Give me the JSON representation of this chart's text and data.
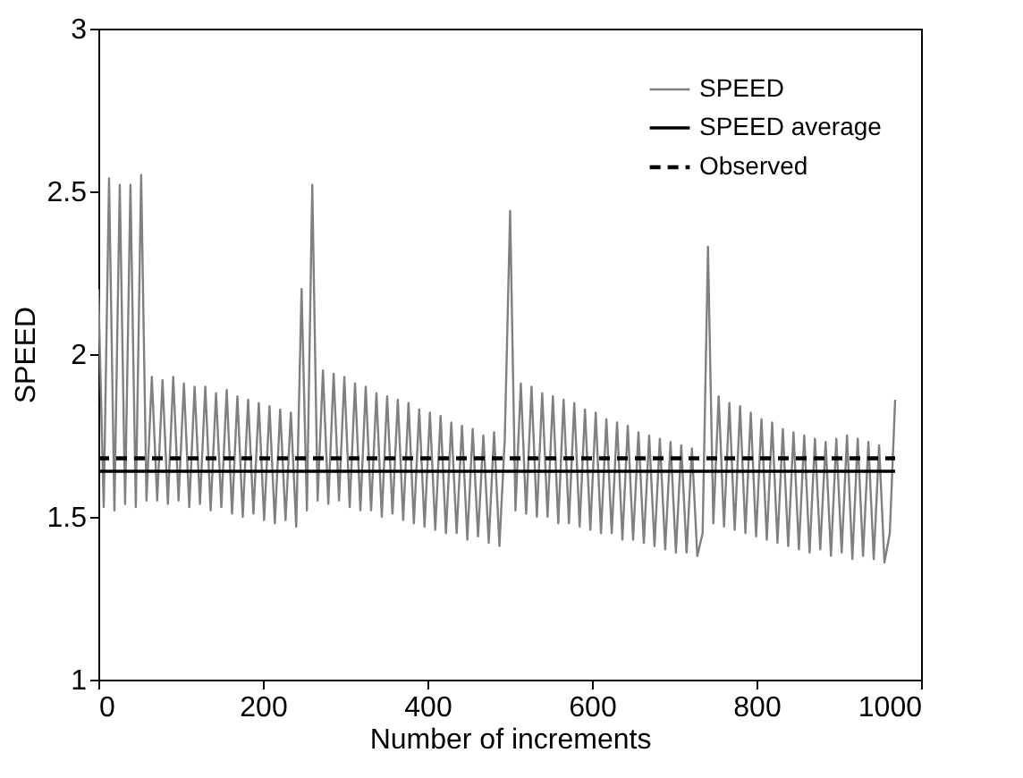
{
  "chart_data": {
    "type": "line",
    "xlabel": "Number of increments",
    "ylabel": "SPEED",
    "xlim": [
      0,
      1000
    ],
    "xticks": [
      0,
      200,
      400,
      600,
      800,
      1000
    ],
    "ylim": [
      1,
      3
    ],
    "yticks": [
      1,
      1.5,
      2,
      2.5,
      3
    ],
    "legend": "top right",
    "grid": false,
    "series": [
      {
        "name": "SPEED",
        "color": "#808080",
        "line_style": "solid",
        "x": [
          0,
          6.5,
          13,
          19.5,
          26,
          32.5,
          39,
          45.5,
          52,
          58.5,
          65,
          71.5,
          78,
          84.5,
          91,
          97.5,
          104,
          110.5,
          117,
          123.5,
          130,
          136.5,
          143,
          149.5,
          156,
          162.5,
          169,
          175.5,
          182,
          188.5,
          195,
          201.5,
          208,
          214.5,
          221,
          227.5,
          234,
          240.5,
          247,
          253.5,
          260,
          266.5,
          273,
          279.5,
          286,
          292.5,
          299,
          305.5,
          312,
          318.5,
          325,
          331.5,
          338,
          344.5,
          351,
          357.5,
          364,
          370.5,
          377,
          383.5,
          390,
          396.5,
          403,
          409.5,
          416,
          422.5,
          429,
          435.5,
          442,
          448.5,
          455,
          461.5,
          468,
          474.5,
          481,
          487.5,
          494,
          500.5,
          507,
          513.5,
          520,
          526.5,
          533,
          539.5,
          546,
          552.5,
          559,
          565.5,
          572,
          578.5,
          585,
          591.5,
          598,
          604.5,
          611,
          617.5,
          624,
          630.5,
          637,
          643.5,
          650,
          656.5,
          663,
          669.5,
          676,
          682.5,
          689,
          695.5,
          702,
          708.5,
          715,
          721.5,
          728,
          734.5,
          741,
          747.5,
          754,
          760.5,
          767,
          773.5,
          780,
          786.5,
          793,
          799.5,
          806,
          812.5,
          819,
          825.5,
          832,
          838.5,
          845,
          851.5,
          858,
          864.5,
          871,
          877.5,
          884,
          890.5,
          897,
          903.5,
          910,
          916.5,
          923,
          929.5,
          936,
          942.5,
          949,
          955.5,
          962,
          968.5
        ],
        "values": [
          2.2,
          1.53,
          2.54,
          1.52,
          2.52,
          1.54,
          2.52,
          1.53,
          2.55,
          1.55,
          1.93,
          1.55,
          1.92,
          1.54,
          1.93,
          1.55,
          1.91,
          1.53,
          1.9,
          1.54,
          1.9,
          1.52,
          1.88,
          1.53,
          1.89,
          1.51,
          1.87,
          1.5,
          1.86,
          1.51,
          1.85,
          1.49,
          1.84,
          1.48,
          1.83,
          1.49,
          1.82,
          1.47,
          2.2,
          1.52,
          2.52,
          1.55,
          1.95,
          1.54,
          1.94,
          1.55,
          1.93,
          1.53,
          1.91,
          1.52,
          1.9,
          1.52,
          1.88,
          1.5,
          1.87,
          1.51,
          1.86,
          1.49,
          1.85,
          1.48,
          1.83,
          1.47,
          1.82,
          1.46,
          1.81,
          1.45,
          1.79,
          1.45,
          1.78,
          1.43,
          1.77,
          1.44,
          1.75,
          1.42,
          1.76,
          1.41,
          1.74,
          2.44,
          1.52,
          1.91,
          1.51,
          1.9,
          1.5,
          1.88,
          1.5,
          1.87,
          1.48,
          1.86,
          1.48,
          1.85,
          1.47,
          1.83,
          1.46,
          1.82,
          1.45,
          1.8,
          1.45,
          1.79,
          1.43,
          1.78,
          1.43,
          1.76,
          1.42,
          1.75,
          1.41,
          1.74,
          1.4,
          1.73,
          1.39,
          1.72,
          1.39,
          1.71,
          1.38,
          1.45,
          2.33,
          1.48,
          1.87,
          1.47,
          1.85,
          1.46,
          1.84,
          1.45,
          1.82,
          1.44,
          1.8,
          1.43,
          1.79,
          1.42,
          1.77,
          1.41,
          1.76,
          1.4,
          1.75,
          1.39,
          1.74,
          1.4,
          1.73,
          1.38,
          1.74,
          1.39,
          1.75,
          1.37,
          1.74,
          1.38,
          1.73,
          1.37,
          1.72,
          1.36,
          1.45,
          1.86
        ]
      },
      {
        "name": "SPEED average",
        "color": "#000000",
        "line_style": "solid",
        "x": [
          0,
          968.5
        ],
        "values": [
          1.64,
          1.64
        ]
      },
      {
        "name": "Observed",
        "color": "#000000",
        "line_style": "dashed",
        "x": [
          0,
          968.5
        ],
        "values": [
          1.68,
          1.68
        ]
      }
    ]
  }
}
